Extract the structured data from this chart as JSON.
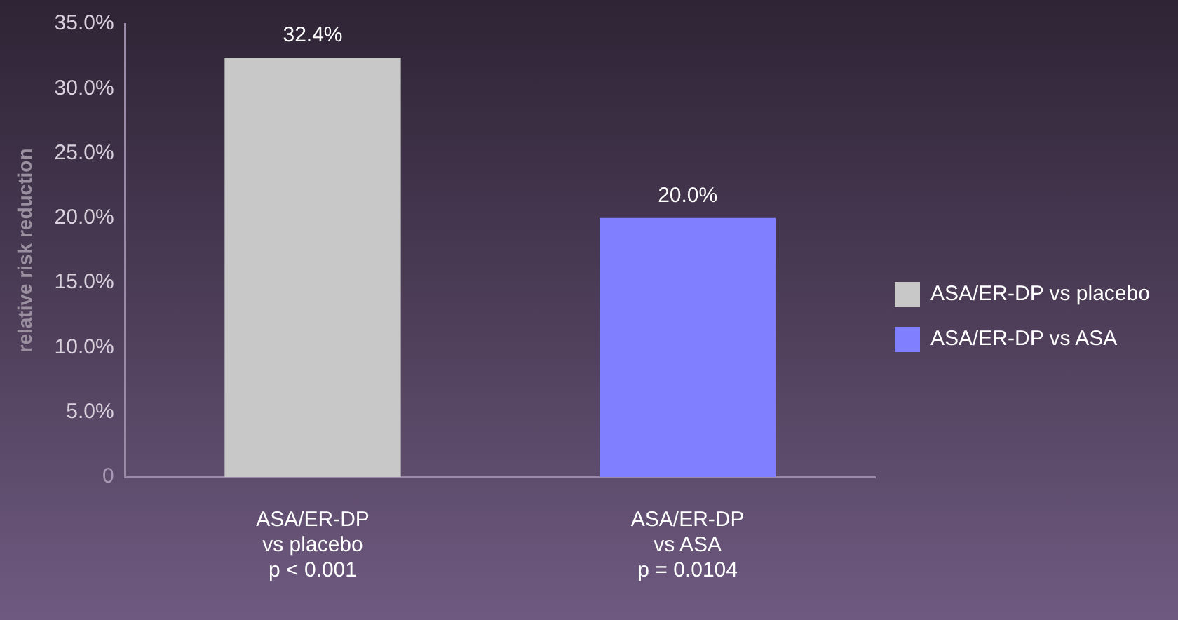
{
  "chart_data": {
    "type": "bar",
    "ylabel": "relative risk reduction",
    "categories": [
      "ASA/ER-DP\nvs placebo\np < 0.001",
      "ASA/ER-DP\nvs ASA\np = 0.0104"
    ],
    "series": [
      {
        "name": "ASA/ER-DP vs placebo",
        "color": "#c8c8c8",
        "values": [
          32.4,
          null
        ],
        "value_labels": [
          "32.4%",
          null
        ]
      },
      {
        "name": "ASA/ER-DP vs ASA",
        "color": "#7f7fff",
        "values": [
          null,
          20.0
        ],
        "value_labels": [
          null,
          "20.0%"
        ]
      }
    ],
    "ylim": [
      0,
      35
    ],
    "yticks": [
      {
        "value": 0,
        "label": "0"
      },
      {
        "value": 5,
        "label": "5.0%"
      },
      {
        "value": 10,
        "label": "10.0%"
      },
      {
        "value": 15,
        "label": "15.0%"
      },
      {
        "value": 20,
        "label": "20.0%"
      },
      {
        "value": 25,
        "label": "25.0%"
      },
      {
        "value": 30,
        "label": "30.0%"
      },
      {
        "value": 35,
        "label": "35.0%"
      }
    ],
    "grid": false,
    "legend": "right"
  }
}
